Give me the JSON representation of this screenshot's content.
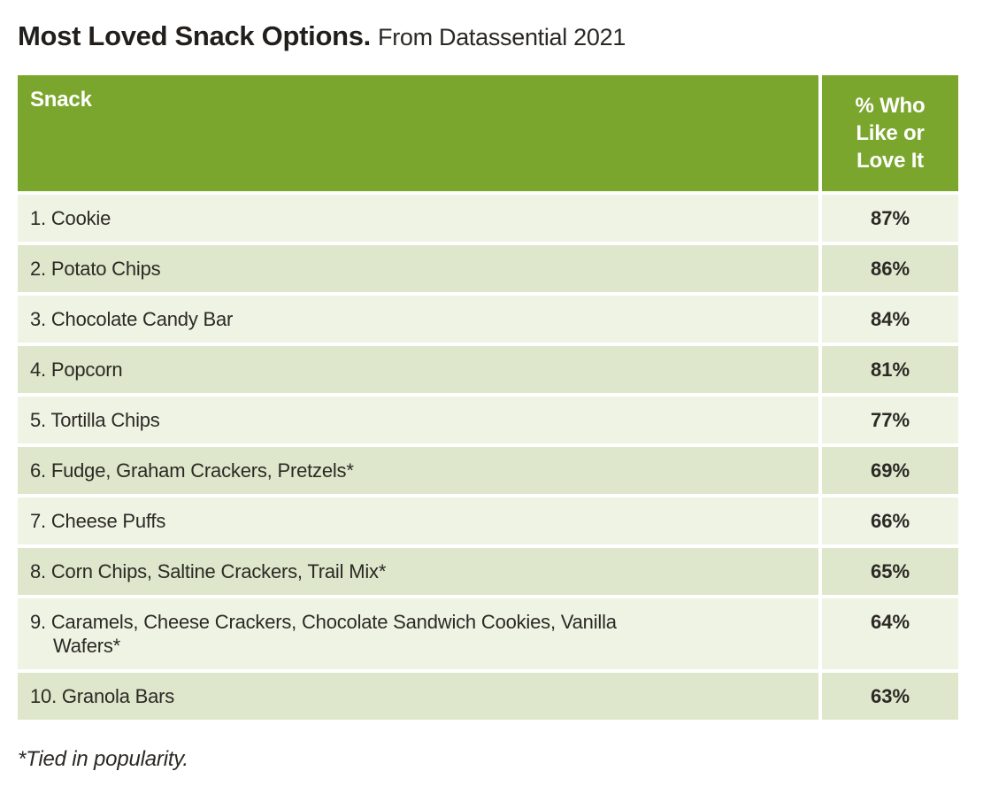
{
  "page": {
    "title": "Most Loved Snack Options.",
    "subtitle": "From Datassential 2021",
    "footnote": "*Tied in popularity."
  },
  "table": {
    "header": {
      "snack_column": "Snack",
      "percent_column": "% Who Like or Love It"
    },
    "rows": [
      {
        "label": "1. Cookie",
        "value": "87%"
      },
      {
        "label": "2. Potato Chips",
        "value": "86%"
      },
      {
        "label": "3. Chocolate Candy Bar",
        "value": "84%"
      },
      {
        "label": "4. Popcorn",
        "value": "81%"
      },
      {
        "label": "5. Tortilla Chips",
        "value": "77%"
      },
      {
        "label": "6. Fudge, Graham Crackers, Pretzels*",
        "value": "69%"
      },
      {
        "label": "7. Cheese Puffs",
        "value": "66%"
      },
      {
        "label": "8. Corn Chips, Saltine Crackers, Trail Mix*",
        "value": "65%"
      },
      {
        "label": "9. Caramels, Cheese Crackers, Chocolate Sandwich Cookies, Vanilla\nWafers*",
        "value": "64%"
      },
      {
        "label": "10. Granola Bars",
        "value": "63%"
      }
    ]
  },
  "colors": {
    "header_green": "#7BA62E",
    "row_light": "#EFF3E4",
    "row_dark": "#DEE7CB",
    "text": "#2B2925",
    "header_text": "#FFFFFF"
  },
  "chart_data": {
    "type": "table",
    "title": "Most Loved Snack Options",
    "source": "Datassential 2021",
    "columns": [
      "Snack",
      "% Who Like or Love It"
    ],
    "categories": [
      "Cookie",
      "Potato Chips",
      "Chocolate Candy Bar",
      "Popcorn",
      "Tortilla Chips",
      "Fudge, Graham Crackers, Pretzels (tied)",
      "Cheese Puffs",
      "Corn Chips, Saltine Crackers, Trail Mix (tied)",
      "Caramels, Cheese Crackers, Chocolate Sandwich Cookies, Vanilla Wafers (tied)",
      "Granola Bars"
    ],
    "values": [
      87,
      86,
      84,
      81,
      77,
      69,
      66,
      65,
      64,
      63
    ],
    "value_unit": "%",
    "footnote": "*Tied in popularity."
  }
}
